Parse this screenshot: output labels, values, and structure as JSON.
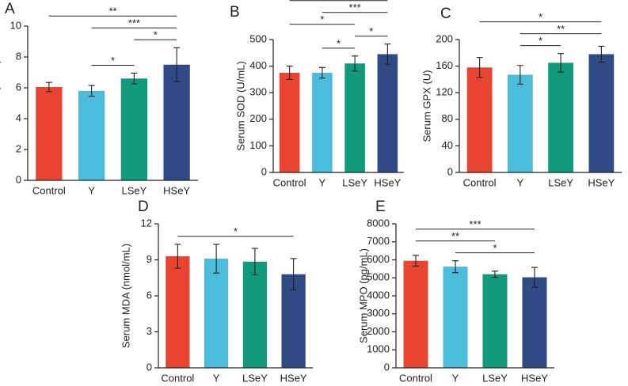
{
  "chart_data": [
    {
      "type": "bar",
      "label": "A",
      "ylabel": "Serum CAT (U/mL)",
      "categories": [
        "Control",
        "Y",
        "LSeY",
        "HSeY"
      ],
      "values": [
        6.05,
        5.8,
        6.6,
        7.5
      ],
      "errors": [
        0.3,
        0.35,
        0.35,
        1.1
      ],
      "colors": [
        "#e8442f",
        "#4bbcd9",
        "#119b7a",
        "#2f4a85"
      ],
      "ylim": [
        0,
        10
      ],
      "yticks": [
        0,
        2,
        4,
        6,
        8,
        10
      ],
      "comparisons": [
        {
          "from": 1,
          "to": 2,
          "label": "*"
        },
        {
          "from": 2,
          "to": 3,
          "label": "*"
        },
        {
          "from": 1,
          "to": 3,
          "label": "***"
        },
        {
          "from": 0,
          "to": 3,
          "label": "**"
        }
      ]
    },
    {
      "type": "bar",
      "label": "B",
      "ylabel": "Serum SOD (U/mL)",
      "categories": [
        "Control",
        "Y",
        "LSeY",
        "HSeY"
      ],
      "values": [
        375,
        375,
        410,
        445
      ],
      "errors": [
        25,
        20,
        28,
        38
      ],
      "colors": [
        "#e8442f",
        "#4bbcd9",
        "#119b7a",
        "#2f4a85"
      ],
      "ylim": [
        0,
        500
      ],
      "yticks": [
        0,
        100,
        200,
        300,
        400,
        500
      ],
      "comparisons": [
        {
          "from": 1,
          "to": 2,
          "label": "*"
        },
        {
          "from": 2,
          "to": 3,
          "label": "*"
        },
        {
          "from": 0,
          "to": 2,
          "label": "*"
        },
        {
          "from": 1,
          "to": 3,
          "label": "***"
        },
        {
          "from": 0,
          "to": 3,
          "label": "***"
        }
      ]
    },
    {
      "type": "bar",
      "label": "C",
      "ylabel": "Serum GPX (U)",
      "categories": [
        "Control",
        "Y",
        "LSeY",
        "HSeY"
      ],
      "values": [
        158,
        147,
        165,
        178
      ],
      "errors": [
        15,
        14,
        14,
        12
      ],
      "colors": [
        "#e8442f",
        "#4bbcd9",
        "#119b7a",
        "#2f4a85"
      ],
      "ylim": [
        0,
        200
      ],
      "yticks": [
        0,
        40,
        80,
        120,
        160,
        200
      ],
      "comparisons": [
        {
          "from": 1,
          "to": 2,
          "label": "*"
        },
        {
          "from": 1,
          "to": 3,
          "label": "**"
        },
        {
          "from": 0,
          "to": 3,
          "label": "*"
        }
      ]
    },
    {
      "type": "bar",
      "label": "D",
      "ylabel": "Serum MDA (nmol/mL)",
      "categories": [
        "Control",
        "Y",
        "LSeY",
        "HSeY"
      ],
      "values": [
        9.3,
        9.1,
        8.85,
        7.8
      ],
      "errors": [
        1.0,
        1.2,
        1.1,
        1.3
      ],
      "colors": [
        "#e8442f",
        "#4bbcd9",
        "#119b7a",
        "#2f4a85"
      ],
      "ylim": [
        0,
        12
      ],
      "yticks": [
        0,
        3,
        6,
        9,
        12
      ],
      "comparisons": [
        {
          "from": 0,
          "to": 3,
          "label": "*"
        }
      ]
    },
    {
      "type": "bar",
      "label": "E",
      "ylabel": "Serum MPO (pg/mL)",
      "categories": [
        "Control",
        "Y",
        "LSeY",
        "HSeY"
      ],
      "values": [
        5950,
        5620,
        5200,
        5030
      ],
      "errors": [
        300,
        330,
        170,
        550
      ],
      "colors": [
        "#e8442f",
        "#4bbcd9",
        "#119b7a",
        "#2f4a85"
      ],
      "ylim": [
        0,
        8000
      ],
      "yticks": [
        0,
        1000,
        2000,
        3000,
        4000,
        5000,
        6000,
        7000,
        8000
      ],
      "comparisons": [
        {
          "from": 1,
          "to": 3,
          "label": "*"
        },
        {
          "from": 0,
          "to": 2,
          "label": "**"
        },
        {
          "from": 0,
          "to": 3,
          "label": "***"
        }
      ]
    }
  ]
}
